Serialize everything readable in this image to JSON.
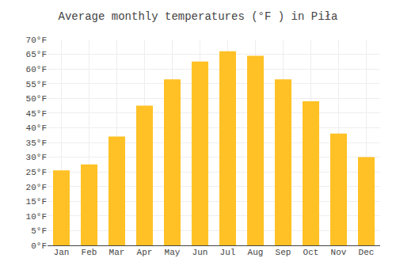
{
  "chart_data": {
    "type": "bar",
    "title": "Average monthly temperatures (°F ) in Piła",
    "categories": [
      "Jan",
      "Feb",
      "Mar",
      "Apr",
      "May",
      "Jun",
      "Jul",
      "Aug",
      "Sep",
      "Oct",
      "Nov",
      "Dec"
    ],
    "values": [
      25.5,
      27.5,
      37.0,
      47.5,
      56.5,
      62.5,
      66.0,
      64.5,
      56.5,
      49.0,
      38.0,
      30.0
    ],
    "color": "#FFC125",
    "ylim": [
      0,
      70
    ],
    "yticks": [
      {
        "value": 0,
        "label": "0°F"
      },
      {
        "value": 5,
        "label": "5°F"
      },
      {
        "value": 10,
        "label": "10°F"
      },
      {
        "value": 15,
        "label": "15°F"
      },
      {
        "value": 20,
        "label": "20°F"
      },
      {
        "value": 25,
        "label": "25°F"
      },
      {
        "value": 30,
        "label": "30°F"
      },
      {
        "value": 35,
        "label": "35°F"
      },
      {
        "value": 40,
        "label": "40°F"
      },
      {
        "value": 45,
        "label": "45°F"
      },
      {
        "value": 50,
        "label": "50°F"
      },
      {
        "value": 55,
        "label": "55°F"
      },
      {
        "value": 60,
        "label": "60°F"
      },
      {
        "value": 65,
        "label": "65°F"
      },
      {
        "value": 70,
        "label": "70°F"
      }
    ],
    "grid": true
  }
}
